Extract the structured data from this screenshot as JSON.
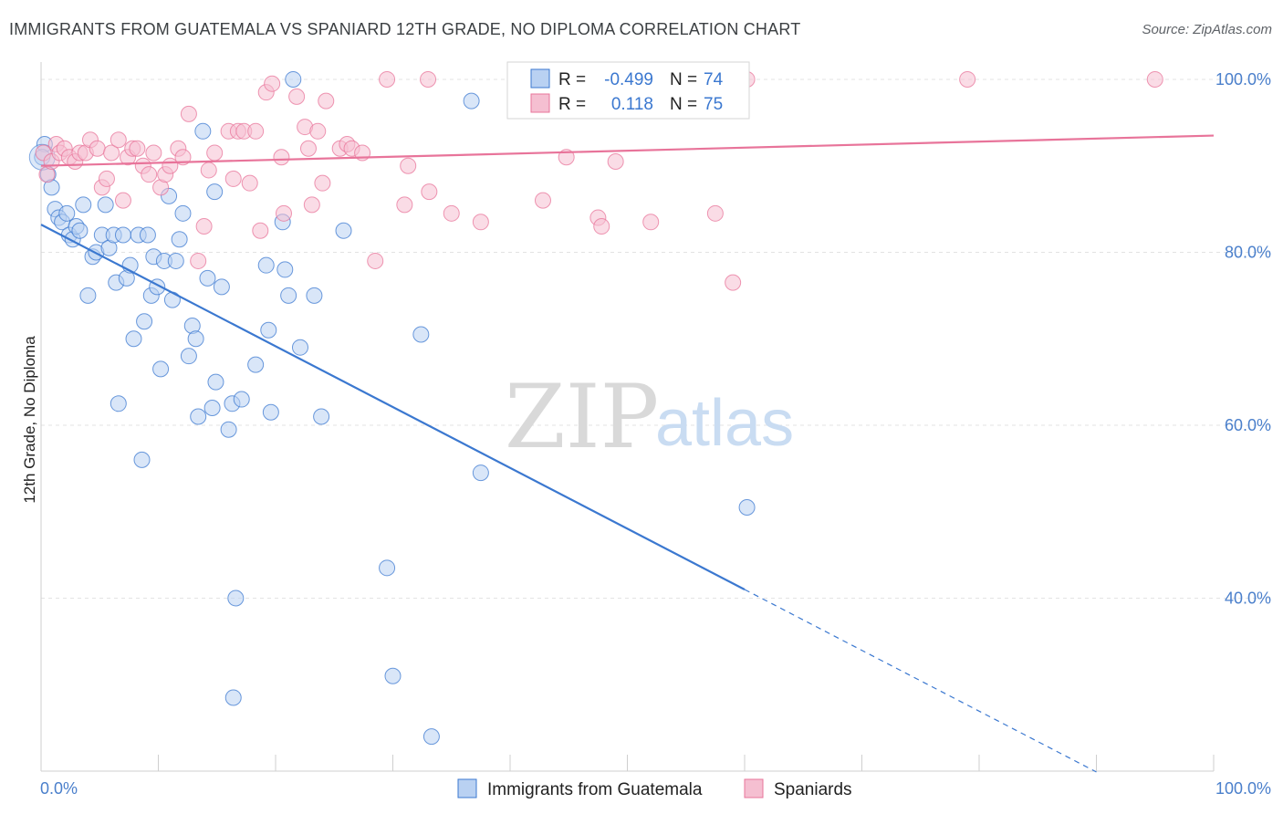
{
  "title": "IMMIGRANTS FROM GUATEMALA VS SPANIARD 12TH GRADE, NO DIPLOMA CORRELATION CHART",
  "source": "Source: ZipAtlas.com",
  "watermark": {
    "zip": "ZIP",
    "atlas": "atlas"
  },
  "colors": {
    "blue": "#3b78d0",
    "blue_fill": "#b9d1f2",
    "pink": "#e8749a",
    "pink_fill": "#f5bfd1",
    "grid": "#e3e3e3"
  },
  "legend": {
    "r_label": "R =",
    "n_label": "N =",
    "rows": [
      {
        "r": "-0.499",
        "n": "74"
      },
      {
        "r": "0.118",
        "n": "75"
      }
    ]
  },
  "chart_data": {
    "type": "scatter",
    "title": "IMMIGRANTS FROM GUATEMALA VS SPANIARD 12TH GRADE, NO DIPLOMA CORRELATION CHART",
    "xlabel": "",
    "ylabel": "12th Grade, No Diploma",
    "xlim": [
      0,
      100
    ],
    "ylim": [
      20,
      102
    ],
    "x_tick_labels": [
      "0.0%",
      "100.0%"
    ],
    "y_ticks": [
      40,
      60,
      80,
      100
    ],
    "y_tick_labels": [
      "40.0%",
      "60.0%",
      "80.0%",
      "100.0%"
    ],
    "grid": true,
    "legend_position": "top-center",
    "series": [
      {
        "name": "Immigrants from Guatemala",
        "color": "#3b78d0",
        "trend": {
          "x0": 0,
          "y0": 83.2,
          "x1": 60,
          "y1": 41.0,
          "dashed_to_x": 90
        },
        "points": [
          [
            0.3,
            92.5
          ],
          [
            0.6,
            89.0
          ],
          [
            0.9,
            87.5
          ],
          [
            1.2,
            85.0
          ],
          [
            1.5,
            84.0
          ],
          [
            1.8,
            83.5
          ],
          [
            2.2,
            84.5
          ],
          [
            2.4,
            82.0
          ],
          [
            2.7,
            81.5
          ],
          [
            3.0,
            83.0
          ],
          [
            3.3,
            82.5
          ],
          [
            3.6,
            85.5
          ],
          [
            4.0,
            75.0
          ],
          [
            4.4,
            79.5
          ],
          [
            4.7,
            80.0
          ],
          [
            5.2,
            82.0
          ],
          [
            5.5,
            85.5
          ],
          [
            5.8,
            80.5
          ],
          [
            6.2,
            82.0
          ],
          [
            6.4,
            76.5
          ],
          [
            6.6,
            62.5
          ],
          [
            7.0,
            82.0
          ],
          [
            7.3,
            77.0
          ],
          [
            7.6,
            78.5
          ],
          [
            7.9,
            70.0
          ],
          [
            8.3,
            82.0
          ],
          [
            8.6,
            56.0
          ],
          [
            8.8,
            72.0
          ],
          [
            9.1,
            82.0
          ],
          [
            9.4,
            75.0
          ],
          [
            9.6,
            79.5
          ],
          [
            9.9,
            76.0
          ],
          [
            10.2,
            66.5
          ],
          [
            10.5,
            79.0
          ],
          [
            10.9,
            86.5
          ],
          [
            11.2,
            74.5
          ],
          [
            11.5,
            79.0
          ],
          [
            11.8,
            81.5
          ],
          [
            12.1,
            84.5
          ],
          [
            12.6,
            68.0
          ],
          [
            12.9,
            71.5
          ],
          [
            13.2,
            70.0
          ],
          [
            13.4,
            61.0
          ],
          [
            13.8,
            94.0
          ],
          [
            14.2,
            77.0
          ],
          [
            14.6,
            62.0
          ],
          [
            14.8,
            87.0
          ],
          [
            14.9,
            65.0
          ],
          [
            15.4,
            76.0
          ],
          [
            16.0,
            59.5
          ],
          [
            16.3,
            62.5
          ],
          [
            16.6,
            40.0
          ],
          [
            16.4,
            28.5
          ],
          [
            17.1,
            63.0
          ],
          [
            18.3,
            67.0
          ],
          [
            19.2,
            78.5
          ],
          [
            19.4,
            71.0
          ],
          [
            19.6,
            61.5
          ],
          [
            20.6,
            83.5
          ],
          [
            20.8,
            78.0
          ],
          [
            21.1,
            75.0
          ],
          [
            21.5,
            100.0
          ],
          [
            22.1,
            69.0
          ],
          [
            23.3,
            75.0
          ],
          [
            23.9,
            61.0
          ],
          [
            25.8,
            82.5
          ],
          [
            29.5,
            43.5
          ],
          [
            30.0,
            31.0
          ],
          [
            32.4,
            70.5
          ],
          [
            33.3,
            24.0
          ],
          [
            36.7,
            97.5
          ],
          [
            37.5,
            54.5
          ],
          [
            60.2,
            50.5
          ],
          [
            0.1,
            91.0
          ]
        ]
      },
      {
        "name": "Spaniards",
        "color": "#e8749a",
        "trend": {
          "x0": 0,
          "y0": 90.0,
          "x1": 100,
          "y1": 93.5
        },
        "points": [
          [
            0.2,
            91.5
          ],
          [
            0.5,
            89.0
          ],
          [
            0.9,
            90.5
          ],
          [
            1.3,
            92.5
          ],
          [
            1.6,
            91.5
          ],
          [
            2.0,
            92.0
          ],
          [
            2.4,
            91.0
          ],
          [
            2.9,
            90.5
          ],
          [
            3.3,
            91.5
          ],
          [
            3.8,
            91.5
          ],
          [
            4.2,
            93.0
          ],
          [
            4.8,
            92.0
          ],
          [
            5.2,
            87.5
          ],
          [
            5.6,
            88.5
          ],
          [
            6.0,
            91.5
          ],
          [
            6.6,
            93.0
          ],
          [
            7.0,
            86.0
          ],
          [
            7.4,
            91.0
          ],
          [
            7.8,
            92.0
          ],
          [
            8.2,
            92.0
          ],
          [
            8.7,
            90.0
          ],
          [
            9.2,
            89.0
          ],
          [
            9.6,
            91.5
          ],
          [
            10.2,
            87.5
          ],
          [
            10.6,
            89.0
          ],
          [
            11.0,
            90.0
          ],
          [
            11.7,
            92.0
          ],
          [
            12.1,
            91.0
          ],
          [
            12.6,
            96.0
          ],
          [
            13.4,
            79.0
          ],
          [
            13.9,
            83.0
          ],
          [
            14.3,
            89.5
          ],
          [
            14.8,
            91.5
          ],
          [
            16.0,
            94.0
          ],
          [
            16.4,
            88.5
          ],
          [
            16.8,
            94.0
          ],
          [
            17.3,
            94.0
          ],
          [
            17.8,
            88.0
          ],
          [
            18.3,
            94.0
          ],
          [
            18.7,
            82.5
          ],
          [
            19.2,
            98.5
          ],
          [
            19.7,
            99.5
          ],
          [
            20.5,
            91.0
          ],
          [
            20.7,
            84.5
          ],
          [
            21.8,
            98.0
          ],
          [
            22.5,
            94.5
          ],
          [
            23.1,
            85.5
          ],
          [
            23.6,
            94.0
          ],
          [
            24.0,
            88.0
          ],
          [
            24.3,
            97.5
          ],
          [
            25.5,
            92.0
          ],
          [
            26.1,
            92.5
          ],
          [
            26.5,
            92.0
          ],
          [
            27.4,
            91.5
          ],
          [
            28.5,
            79.0
          ],
          [
            29.5,
            100.0
          ],
          [
            31.0,
            85.5
          ],
          [
            31.3,
            90.0
          ],
          [
            33.0,
            100.0
          ],
          [
            33.1,
            87.0
          ],
          [
            35.0,
            84.5
          ],
          [
            37.5,
            83.5
          ],
          [
            42.0,
            100.0
          ],
          [
            42.8,
            86.0
          ],
          [
            44.8,
            91.0
          ],
          [
            47.5,
            84.0
          ],
          [
            47.8,
            83.0
          ],
          [
            49.0,
            90.5
          ],
          [
            52.0,
            83.5
          ],
          [
            57.5,
            84.5
          ],
          [
            59.0,
            76.5
          ],
          [
            60.2,
            100.0
          ],
          [
            79.0,
            100.0
          ],
          [
            95.0,
            100.0
          ],
          [
            22.8,
            92.0
          ]
        ]
      }
    ]
  }
}
